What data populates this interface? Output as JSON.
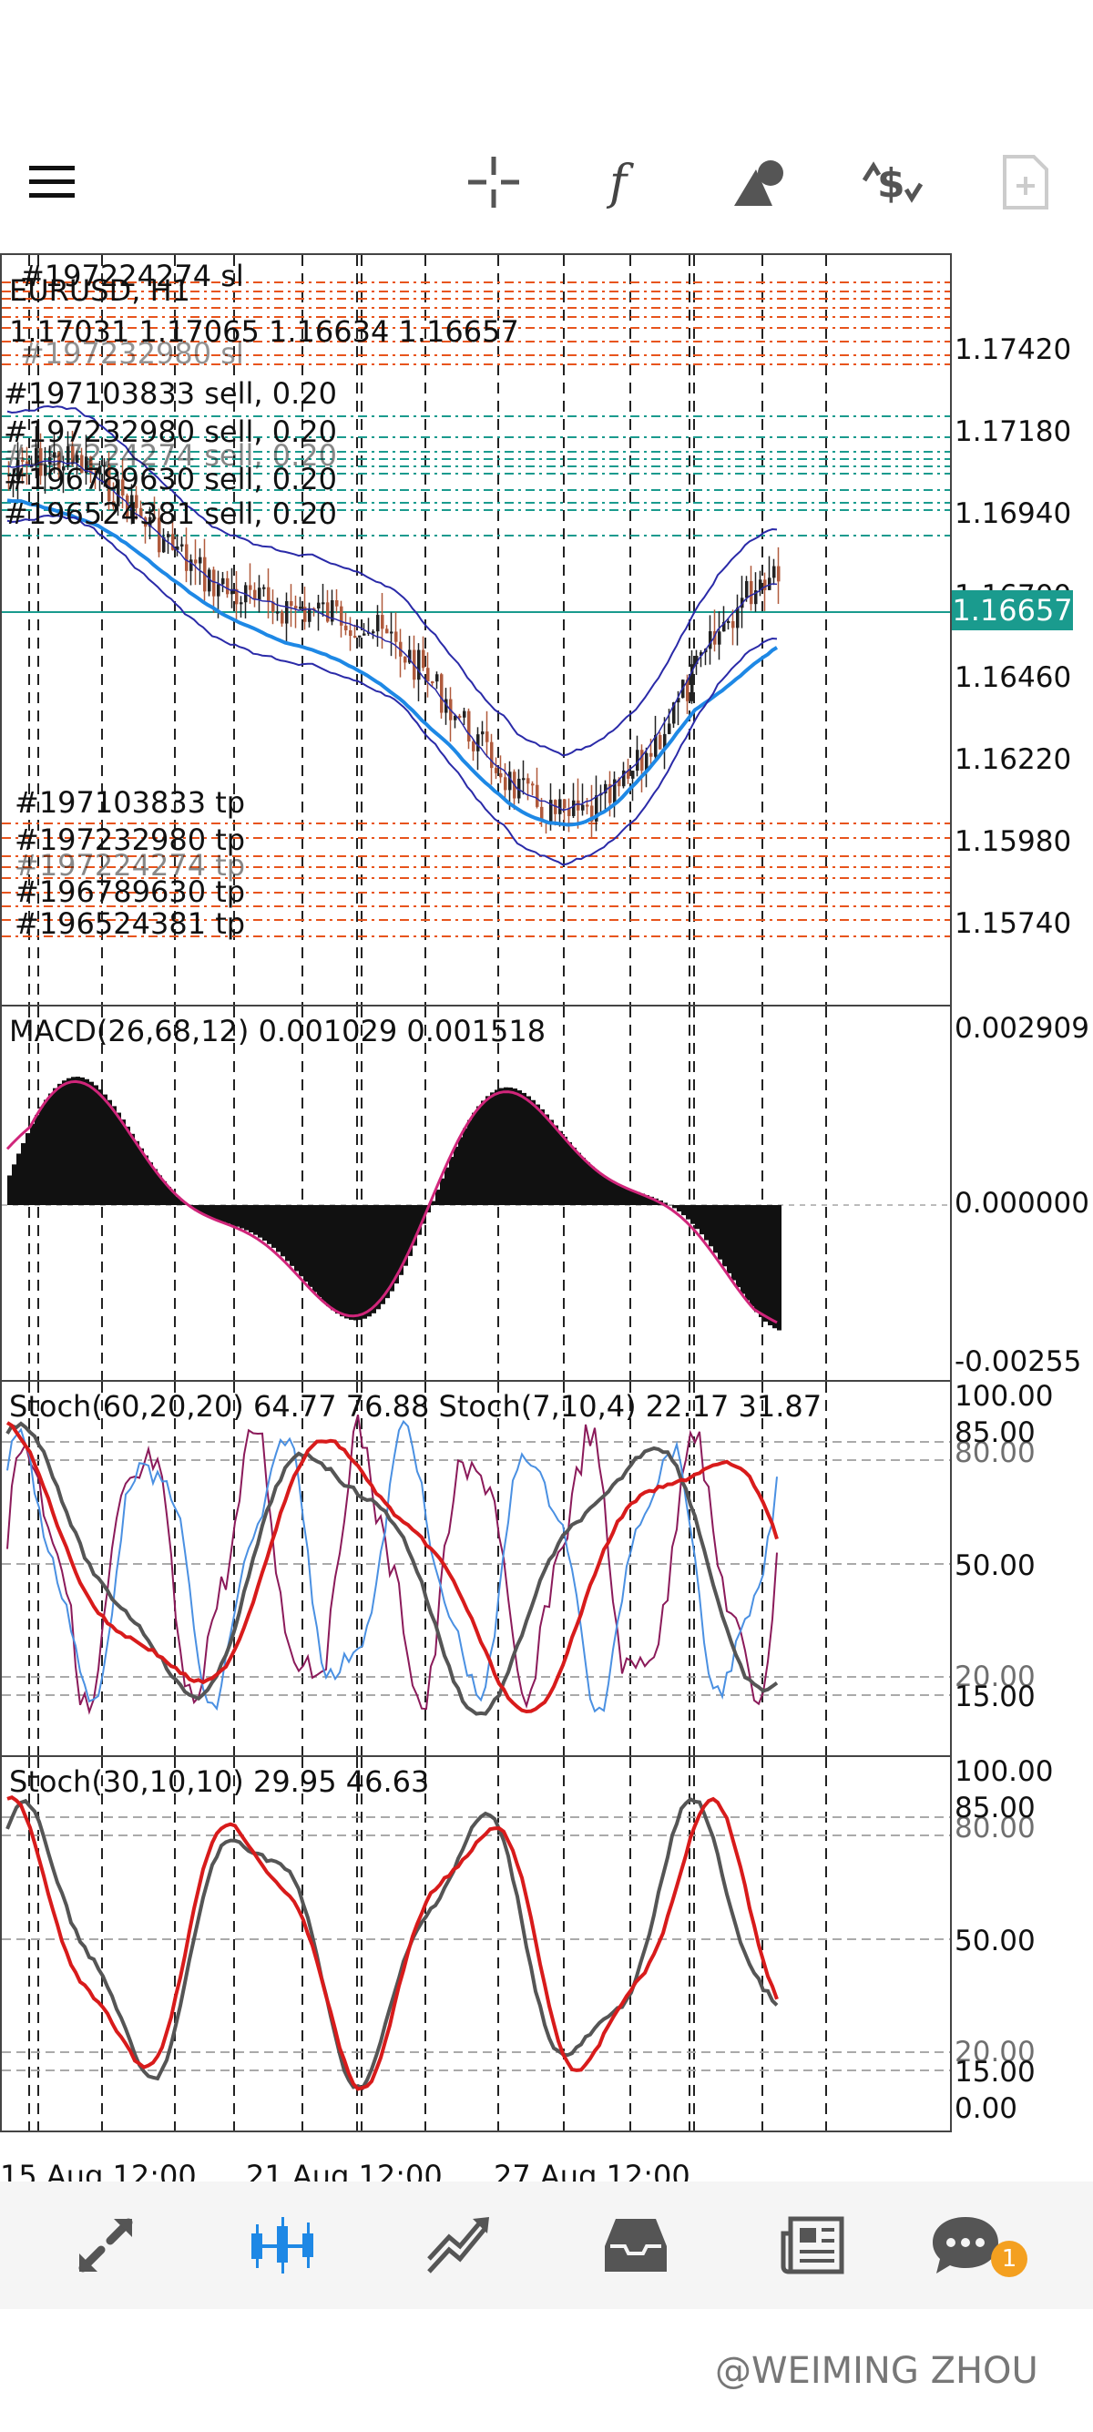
{
  "toolbar": {
    "icons": [
      "menu-icon",
      "crosshair-icon",
      "function-icon",
      "objects-icon",
      "trade-icon",
      "new-order-icon"
    ]
  },
  "main_chart": {
    "symbol_label": "EURUSD, H1",
    "ohlc": "1.17031 1.17065 1.16634 1.16657",
    "current_price": "1.16657",
    "price_ticks": [
      "1.17420",
      "1.17180",
      "1.16940",
      "1.16700",
      "1.16460",
      "1.16220",
      "1.15980",
      "1.15740"
    ],
    "sl_labels": [
      "#197224274 sl",
      "#197232980 sl"
    ],
    "sell_labels": [
      "#197103833 sell, 0.20",
      "#197232980 sell, 0.20",
      "#197224274 sell, 0.20",
      "#196789630 sell, 0.20",
      "#196524381 sell, 0.20"
    ],
    "tp_labels": [
      "#197103833 tp",
      "#197232980 tp",
      "#197224274 tp",
      "#196789630 tp",
      "#196524381 tp"
    ]
  },
  "macd": {
    "title": "MACD(26,68,12) 0.001029 0.001518",
    "ticks": [
      "0.002909",
      "0.000000",
      "-0.00255"
    ]
  },
  "stoch1": {
    "title": "Stoch(60,20,20) 64.77 76.88 Stoch(7,10,4) 22.17 31.87",
    "ticks": [
      "100.00",
      "85.00",
      "80.00",
      "50.00",
      "20.00",
      "15.00"
    ]
  },
  "stoch2": {
    "title": "Stoch(30,10,10) 29.95 46.63",
    "ticks": [
      "100.00",
      "85.00",
      "80.00",
      "50.00",
      "20.00",
      "15.00",
      "0.00"
    ]
  },
  "time_axis": [
    "15 Aug 12:00",
    "21 Aug 12:00",
    "27 Aug 12:00"
  ],
  "bottom_nav": {
    "icons": [
      "quotes-icon",
      "chart-icon",
      "trade-icon",
      "history-icon",
      "news-icon",
      "messages-icon"
    ],
    "active": "chart-icon",
    "badge": "1"
  },
  "watermark": "@WEIMING ZHOU",
  "colors": {
    "accent": "#1e88e5",
    "price_tag": "#1a9b8e",
    "order_line": "#e8541c",
    "sell_line": "#1a9b8e",
    "macd_signal": "#d0257a",
    "stoch_main": "#444444",
    "stoch_signal": "#d81b1b"
  }
}
